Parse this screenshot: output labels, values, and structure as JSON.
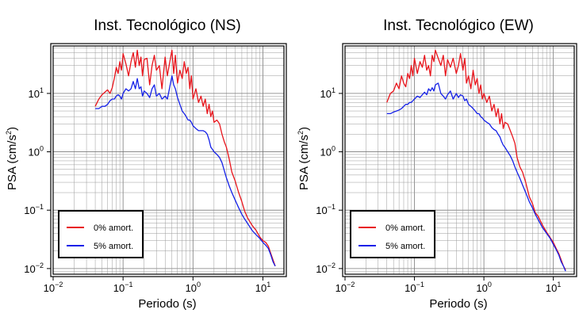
{
  "chart_data": [
    {
      "type": "line",
      "title": "Inst. Tecnológico (NS)",
      "xlabel": "Periodo (s)",
      "ylabel_main": "PSA (cm/s",
      "ylabel_exp": "2",
      "ylabel_close": ")",
      "x_scale": "log",
      "y_scale": "log",
      "xlim": [
        0.01,
        20
      ],
      "ylim": [
        0.008,
        65
      ],
      "grid": true,
      "legend_position": "bottom-left",
      "x_ticks": [
        {
          "base": "10",
          "exp": "−2",
          "value": 0.01
        },
        {
          "base": "10",
          "exp": "−1",
          "value": 0.1
        },
        {
          "base": "10",
          "exp": "0",
          "value": 1
        },
        {
          "base": "10",
          "exp": "1",
          "value": 10
        }
      ],
      "y_ticks": [
        {
          "base": "10",
          "exp": "−2",
          "value": 0.01
        },
        {
          "base": "10",
          "exp": "−1",
          "value": 0.1
        },
        {
          "base": "10",
          "exp": "0",
          "value": 1
        },
        {
          "base": "10",
          "exp": "1",
          "value": 10
        }
      ],
      "series": [
        {
          "name": "0% amort.",
          "color": "#e8141b",
          "x": [
            0.04,
            0.045,
            0.05,
            0.055,
            0.06,
            0.065,
            0.07,
            0.075,
            0.08,
            0.085,
            0.09,
            0.095,
            0.1,
            0.11,
            0.12,
            0.13,
            0.14,
            0.15,
            0.16,
            0.17,
            0.18,
            0.19,
            0.2,
            0.22,
            0.24,
            0.26,
            0.28,
            0.3,
            0.33,
            0.36,
            0.4,
            0.43,
            0.46,
            0.5,
            0.53,
            0.56,
            0.6,
            0.65,
            0.7,
            0.75,
            0.8,
            0.85,
            0.9,
            0.95,
            1.0,
            1.1,
            1.2,
            1.3,
            1.4,
            1.5,
            1.6,
            1.7,
            1.8,
            1.9,
            2.0,
            2.2,
            2.4,
            2.6,
            2.8,
            3.0,
            3.3,
            3.6,
            4.0,
            4.5,
            5.0,
            5.5,
            6.0,
            7.0,
            8.0,
            9.0,
            10.0,
            11.0,
            12.0,
            13.0,
            14.0,
            15.0
          ],
          "y": [
            6.0,
            8.0,
            9.5,
            10.5,
            11.5,
            10.0,
            12.5,
            18,
            28,
            22,
            35,
            25,
            48,
            32,
            20,
            35,
            50,
            28,
            55,
            30,
            42,
            20,
            38,
            40,
            14,
            30,
            45,
            25,
            30,
            12,
            42,
            20,
            32,
            55,
            22,
            45,
            15,
            25,
            18,
            35,
            22,
            28,
            12,
            20,
            8.0,
            12,
            7.0,
            9.0,
            6.0,
            8.0,
            4.5,
            6.5,
            4.0,
            5.0,
            3.2,
            3.5,
            3.0,
            2.0,
            1.5,
            1.2,
            0.75,
            0.45,
            0.32,
            0.2,
            0.14,
            0.095,
            0.075,
            0.055,
            0.045,
            0.035,
            0.03,
            0.028,
            0.024,
            0.018,
            0.014,
            0.011
          ]
        },
        {
          "name": "5% amort.",
          "color": "#1420e8",
          "x": [
            0.04,
            0.045,
            0.05,
            0.055,
            0.06,
            0.065,
            0.07,
            0.075,
            0.08,
            0.085,
            0.09,
            0.095,
            0.1,
            0.11,
            0.12,
            0.13,
            0.14,
            0.15,
            0.16,
            0.17,
            0.18,
            0.19,
            0.2,
            0.22,
            0.24,
            0.26,
            0.28,
            0.3,
            0.33,
            0.36,
            0.4,
            0.43,
            0.46,
            0.5,
            0.53,
            0.56,
            0.6,
            0.65,
            0.7,
            0.75,
            0.8,
            0.85,
            0.9,
            0.95,
            1.0,
            1.1,
            1.2,
            1.3,
            1.4,
            1.5,
            1.6,
            1.7,
            1.8,
            1.9,
            2.0,
            2.2,
            2.4,
            2.6,
            2.8,
            3.0,
            3.3,
            3.6,
            4.0,
            4.5,
            5.0,
            5.5,
            6.0,
            7.0,
            8.0,
            9.0,
            10.0,
            11.0,
            12.0,
            13.0,
            14.0,
            15.0
          ],
          "y": [
            5.5,
            5.5,
            6.0,
            6.0,
            6.5,
            7.5,
            8.0,
            8.0,
            9.0,
            9.5,
            9.0,
            8.0,
            10.0,
            12,
            11,
            12,
            16,
            12,
            18,
            12,
            13,
            9.0,
            11,
            10,
            8.5,
            12,
            14,
            9.0,
            10,
            8.0,
            9.0,
            8.0,
            12,
            20,
            14,
            12,
            8.5,
            6.5,
            5.0,
            4.5,
            4.0,
            3.5,
            3.5,
            3.2,
            2.8,
            2.5,
            2.3,
            2.3,
            2.3,
            2.2,
            2.0,
            1.6,
            1.2,
            1.1,
            1.0,
            0.9,
            0.8,
            0.65,
            0.48,
            0.36,
            0.26,
            0.2,
            0.15,
            0.11,
            0.085,
            0.07,
            0.06,
            0.045,
            0.038,
            0.033,
            0.028,
            0.025,
            0.022,
            0.017,
            0.013,
            0.011
          ]
        }
      ]
    },
    {
      "type": "line",
      "title": "Inst. Tecnológico (EW)",
      "xlabel": "Periodo (s)",
      "ylabel_main": "PSA (cm/s",
      "ylabel_exp": "2",
      "ylabel_close": ")",
      "x_scale": "log",
      "y_scale": "log",
      "xlim": [
        0.01,
        20
      ],
      "ylim": [
        0.008,
        65
      ],
      "grid": true,
      "legend_position": "bottom-left",
      "x_ticks": [
        {
          "base": "10",
          "exp": "−2",
          "value": 0.01
        },
        {
          "base": "10",
          "exp": "−1",
          "value": 0.1
        },
        {
          "base": "10",
          "exp": "0",
          "value": 1
        },
        {
          "base": "10",
          "exp": "1",
          "value": 10
        }
      ],
      "y_ticks": [
        {
          "base": "10",
          "exp": "−2",
          "value": 0.01
        },
        {
          "base": "10",
          "exp": "−1",
          "value": 0.1
        },
        {
          "base": "10",
          "exp": "0",
          "value": 1
        },
        {
          "base": "10",
          "exp": "1",
          "value": 10
        }
      ],
      "series": [
        {
          "name": "0% amort.",
          "color": "#e8141b",
          "x": [
            0.04,
            0.045,
            0.05,
            0.055,
            0.06,
            0.065,
            0.07,
            0.075,
            0.08,
            0.085,
            0.09,
            0.095,
            0.1,
            0.11,
            0.12,
            0.13,
            0.14,
            0.15,
            0.16,
            0.17,
            0.18,
            0.19,
            0.2,
            0.22,
            0.24,
            0.26,
            0.28,
            0.3,
            0.33,
            0.36,
            0.4,
            0.43,
            0.46,
            0.5,
            0.53,
            0.56,
            0.6,
            0.65,
            0.7,
            0.75,
            0.8,
            0.85,
            0.9,
            0.95,
            1.0,
            1.1,
            1.2,
            1.3,
            1.4,
            1.5,
            1.6,
            1.7,
            1.8,
            1.9,
            2.0,
            2.2,
            2.4,
            2.6,
            2.8,
            3.0,
            3.3,
            3.6,
            4.0,
            4.5,
            5.0,
            5.5,
            6.0,
            7.0,
            8.0,
            9.0,
            10.0,
            11.0,
            12.0,
            13.0,
            14.0,
            15.0
          ],
          "y": [
            7.0,
            10.0,
            11.0,
            15.0,
            12.0,
            20.0,
            15.0,
            13.0,
            22.0,
            18.0,
            30.0,
            20.0,
            40.0,
            22,
            35,
            28,
            45,
            25,
            30,
            20,
            45,
            35,
            55,
            40,
            30,
            45,
            20,
            38,
            28,
            40,
            22,
            30,
            48,
            25,
            40,
            15,
            20,
            12,
            25,
            14,
            18,
            10,
            14,
            8.0,
            10,
            7.0,
            9.0,
            5.0,
            6.5,
            4.0,
            5.5,
            3.0,
            4.5,
            2.5,
            3.2,
            3.0,
            2.3,
            1.8,
            1.4,
            0.8,
            0.55,
            0.45,
            0.3,
            0.17,
            0.13,
            0.09,
            0.08,
            0.055,
            0.042,
            0.034,
            0.028,
            0.022,
            0.018,
            0.014,
            0.011,
            0.0095
          ]
        },
        {
          "name": "5% amort.",
          "color": "#1420e8",
          "x": [
            0.04,
            0.045,
            0.05,
            0.055,
            0.06,
            0.065,
            0.07,
            0.075,
            0.08,
            0.085,
            0.09,
            0.095,
            0.1,
            0.11,
            0.12,
            0.13,
            0.14,
            0.15,
            0.16,
            0.17,
            0.18,
            0.19,
            0.2,
            0.22,
            0.24,
            0.26,
            0.28,
            0.3,
            0.33,
            0.36,
            0.4,
            0.43,
            0.46,
            0.5,
            0.53,
            0.56,
            0.6,
            0.65,
            0.7,
            0.75,
            0.8,
            0.85,
            0.9,
            0.95,
            1.0,
            1.1,
            1.2,
            1.3,
            1.4,
            1.5,
            1.6,
            1.7,
            1.8,
            1.9,
            2.0,
            2.2,
            2.4,
            2.6,
            2.8,
            3.0,
            3.3,
            3.6,
            4.0,
            4.5,
            5.0,
            5.5,
            6.0,
            7.0,
            8.0,
            9.0,
            10.0,
            11.0,
            12.0,
            13.0,
            14.0,
            15.0
          ],
          "y": [
            4.5,
            4.5,
            4.8,
            5.0,
            5.2,
            5.5,
            6.0,
            6.5,
            6.5,
            7.0,
            7.0,
            7.5,
            8.0,
            9.0,
            8.5,
            9.5,
            10.5,
            9.5,
            12.0,
            11.0,
            12.5,
            11.0,
            14.0,
            15.0,
            10.0,
            9.0,
            8.0,
            9.5,
            11,
            8.0,
            10,
            8.5,
            9.5,
            9.0,
            7.5,
            8.0,
            6.5,
            6.0,
            5.5,
            5.0,
            4.5,
            4.5,
            4.0,
            3.8,
            3.5,
            3.2,
            3.0,
            2.6,
            2.4,
            2.3,
            2.0,
            1.8,
            1.5,
            1.3,
            1.2,
            1.0,
            0.85,
            0.7,
            0.55,
            0.45,
            0.35,
            0.27,
            0.2,
            0.14,
            0.11,
            0.085,
            0.07,
            0.05,
            0.04,
            0.033,
            0.026,
            0.021,
            0.017,
            0.013,
            0.011,
            0.009
          ]
        }
      ]
    }
  ]
}
